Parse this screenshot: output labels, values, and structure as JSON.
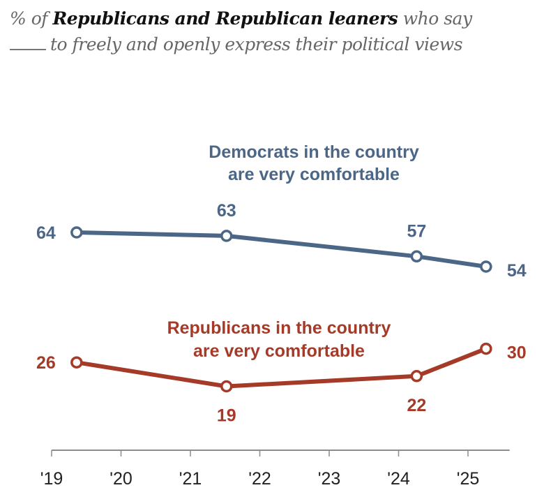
{
  "title": {
    "prefix": "% of",
    "bold": "Republicans and Republican leaners",
    "suffix": "who say",
    "line2": "to freely and openly express their political views"
  },
  "chart_data": {
    "type": "line",
    "title": "% of Republicans and Republican leaners who say ___ to freely and openly express their political views",
    "xlabel": "",
    "ylabel": "",
    "x_ticks": [
      2019,
      2020,
      2021,
      2022,
      2023,
      2024,
      2025
    ],
    "x_tick_labels": [
      "'19",
      "'20",
      "'21",
      "'22",
      "'23",
      "'24",
      "'25"
    ],
    "xlim": [
      2019,
      2025.6
    ],
    "ylim": [
      0,
      70
    ],
    "grid": false,
    "series": [
      {
        "name": "Democrats in the country are very comfortable",
        "label_lines": [
          "Democrats in the country",
          "are very comfortable"
        ],
        "color": "#4b6686",
        "x": [
          2019.36,
          2021.52,
          2024.26,
          2025.26
        ],
        "values": [
          64,
          63,
          57,
          54
        ],
        "label_pos": [
          "left",
          "above",
          "above",
          "right"
        ]
      },
      {
        "name": "Republicans in the country are very comfortable",
        "label_lines": [
          "Republicans in the country",
          "are very comfortable"
        ],
        "color": "#a63a28",
        "x": [
          2019.36,
          2021.52,
          2024.26,
          2025.26
        ],
        "values": [
          26,
          19,
          22,
          30
        ],
        "label_pos": [
          "left",
          "below",
          "below",
          "right"
        ]
      }
    ]
  }
}
